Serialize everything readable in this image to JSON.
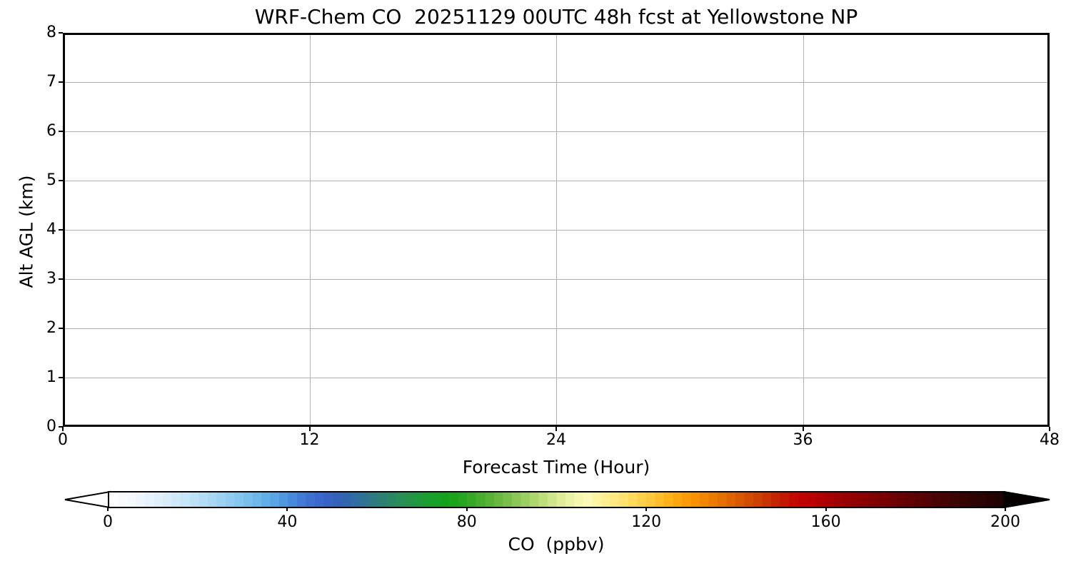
{
  "figure": {
    "title": "WRF-Chem CO  20251129 00UTC 48h fcst at Yellowstone NP",
    "background_color": "#ffffff",
    "text_color": "#000000"
  },
  "axes": {
    "xlabel": "Forecast Time (Hour)",
    "ylabel": "Alt AGL (km)",
    "xlim": [
      0,
      48
    ],
    "ylim": [
      0,
      8
    ],
    "xticks": [
      0,
      12,
      24,
      36,
      48
    ],
    "yticks": [
      0,
      1,
      2,
      3,
      4,
      5,
      6,
      7,
      8
    ],
    "grid": true,
    "grid_color": "#b2b2b2",
    "spine_color": "#000000",
    "plot_background": "#ffffff"
  },
  "colorbar": {
    "label": "CO  (ppbv)",
    "vmin": 0,
    "vmax": 200,
    "ticks": [
      0,
      40,
      80,
      120,
      160,
      200
    ],
    "extend": "both",
    "under_color": "#ffffff",
    "over_color": "#050101",
    "n_bands": 100,
    "outline_color": "#000000",
    "stops": [
      [
        0,
        "#ffffff"
      ],
      [
        6,
        "#f0f8fd"
      ],
      [
        12,
        "#ddeefa"
      ],
      [
        18,
        "#c3e3f7"
      ],
      [
        24,
        "#a3d4f2"
      ],
      [
        30,
        "#7fc3ed"
      ],
      [
        36,
        "#5caae6"
      ],
      [
        40,
        "#4a90dc"
      ],
      [
        44,
        "#3f74d2"
      ],
      [
        48,
        "#3a64cb"
      ],
      [
        52,
        "#3161b2"
      ],
      [
        56,
        "#2e6f99"
      ],
      [
        60,
        "#2c7d78"
      ],
      [
        64,
        "#2a8a5c"
      ],
      [
        68,
        "#239542"
      ],
      [
        72,
        "#18a02a"
      ],
      [
        76,
        "#13a318"
      ],
      [
        80,
        "#2ea522"
      ],
      [
        84,
        "#4faf31"
      ],
      [
        88,
        "#71bb45"
      ],
      [
        92,
        "#93cb5c"
      ],
      [
        96,
        "#b5da74"
      ],
      [
        100,
        "#d8e992"
      ],
      [
        104,
        "#f2f5ab"
      ],
      [
        107,
        "#fdfab8"
      ],
      [
        110,
        "#fff298"
      ],
      [
        114,
        "#ffe678"
      ],
      [
        118,
        "#ffd652"
      ],
      [
        122,
        "#ffc233"
      ],
      [
        126,
        "#ffab14"
      ],
      [
        130,
        "#fb9600"
      ],
      [
        134,
        "#ee8000"
      ],
      [
        138,
        "#e26a00"
      ],
      [
        142,
        "#d55200"
      ],
      [
        146,
        "#c93a00"
      ],
      [
        150,
        "#c41d00"
      ],
      [
        154,
        "#c40300"
      ],
      [
        158,
        "#b50000"
      ],
      [
        162,
        "#a30000"
      ],
      [
        166,
        "#930000"
      ],
      [
        170,
        "#850000"
      ],
      [
        175,
        "#710000"
      ],
      [
        180,
        "#5e0101"
      ],
      [
        186,
        "#470404"
      ],
      [
        192,
        "#330303"
      ],
      [
        200,
        "#1c0202"
      ]
    ]
  },
  "chart_data": {
    "type": "heatmap",
    "title": "WRF-Chem CO  20251129 00UTC 48h fcst at Yellowstone NP",
    "xlabel": "Forecast Time (Hour)",
    "ylabel": "Alt AGL (km)",
    "xlim": [
      0,
      48
    ],
    "ylim": [
      0,
      8
    ],
    "xticks": [
      0,
      12,
      24,
      36,
      48
    ],
    "yticks": [
      0,
      1,
      2,
      3,
      4,
      5,
      6,
      7,
      8
    ],
    "grid": true,
    "legend": "none",
    "values": [],
    "note": "Time-height cross-section panel is blank/white: no CO contour values are rendered above the white minimum of the colormap.",
    "colorbar": {
      "label": "CO  (ppbv)",
      "orientation": "horizontal",
      "position": "bottom",
      "range": [
        0,
        200
      ],
      "ticks": [
        0,
        40,
        80,
        120,
        160,
        200
      ],
      "extend": "both",
      "color_sequence": "white -> light blue -> blue -> teal -> green -> yellow-green -> pale yellow -> orange -> red -> dark red -> black"
    }
  }
}
